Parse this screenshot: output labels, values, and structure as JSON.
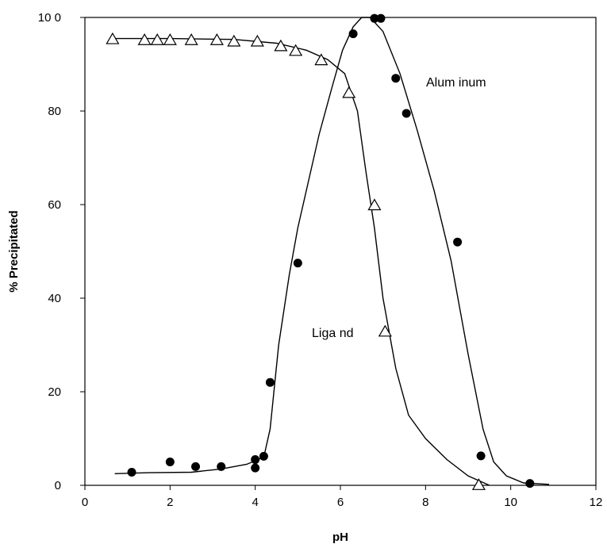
{
  "chart_data": {
    "type": "scatter",
    "title": "",
    "xlabel": "pH",
    "ylabel": "% Precipitated",
    "xlim": [
      0,
      12
    ],
    "ylim": [
      0,
      100
    ],
    "x_ticks": [
      "0",
      "2",
      "4",
      "6",
      "8",
      "10",
      "12"
    ],
    "y_ticks": [
      "0",
      "20",
      "40",
      "60",
      "80",
      "10 0"
    ],
    "grid": false,
    "legend": "none",
    "annotations": [
      "Alum inum",
      "Liga nd"
    ],
    "series": [
      {
        "name": "Aluminum",
        "marker": "filled-circle",
        "points": [
          {
            "x": 1.1,
            "y": 2.8
          },
          {
            "x": 2.0,
            "y": 5.0
          },
          {
            "x": 2.6,
            "y": 4.0
          },
          {
            "x": 3.2,
            "y": 4.0
          },
          {
            "x": 4.0,
            "y": 5.5
          },
          {
            "x": 4.0,
            "y": 3.7
          },
          {
            "x": 4.2,
            "y": 6.2
          },
          {
            "x": 4.35,
            "y": 22.0
          },
          {
            "x": 5.0,
            "y": 47.5
          },
          {
            "x": 6.3,
            "y": 96.5
          },
          {
            "x": 6.8,
            "y": 99.8
          },
          {
            "x": 6.95,
            "y": 99.8
          },
          {
            "x": 7.3,
            "y": 87.0
          },
          {
            "x": 7.55,
            "y": 79.5
          },
          {
            "x": 8.75,
            "y": 52.0
          },
          {
            "x": 9.3,
            "y": 6.3
          },
          {
            "x": 10.45,
            "y": 0.4
          }
        ],
        "curve": [
          {
            "x": 0.7,
            "y": 2.5
          },
          {
            "x": 1.5,
            "y": 2.7
          },
          {
            "x": 2.5,
            "y": 2.8
          },
          {
            "x": 3.2,
            "y": 3.5
          },
          {
            "x": 3.8,
            "y": 4.5
          },
          {
            "x": 4.2,
            "y": 6.0
          },
          {
            "x": 4.35,
            "y": 12.0
          },
          {
            "x": 4.55,
            "y": 30.0
          },
          {
            "x": 4.8,
            "y": 45.0
          },
          {
            "x": 5.0,
            "y": 55.0
          },
          {
            "x": 5.5,
            "y": 75.0
          },
          {
            "x": 5.8,
            "y": 85.0
          },
          {
            "x": 6.05,
            "y": 93.0
          },
          {
            "x": 6.3,
            "y": 98.0
          },
          {
            "x": 6.5,
            "y": 100.0
          },
          {
            "x": 6.7,
            "y": 100.0
          },
          {
            "x": 7.0,
            "y": 97.0
          },
          {
            "x": 7.4,
            "y": 88.0
          },
          {
            "x": 7.8,
            "y": 76.0
          },
          {
            "x": 8.2,
            "y": 63.0
          },
          {
            "x": 8.6,
            "y": 48.0
          },
          {
            "x": 9.0,
            "y": 28.0
          },
          {
            "x": 9.35,
            "y": 12.0
          },
          {
            "x": 9.6,
            "y": 5.0
          },
          {
            "x": 9.9,
            "y": 2.0
          },
          {
            "x": 10.3,
            "y": 0.5
          },
          {
            "x": 10.9,
            "y": 0.2
          }
        ]
      },
      {
        "name": "Ligand",
        "marker": "open-triangle",
        "points": [
          {
            "x": 0.65,
            "y": 95.5
          },
          {
            "x": 1.4,
            "y": 95.3
          },
          {
            "x": 1.7,
            "y": 95.3
          },
          {
            "x": 2.0,
            "y": 95.3
          },
          {
            "x": 2.5,
            "y": 95.3
          },
          {
            "x": 3.1,
            "y": 95.3
          },
          {
            "x": 3.5,
            "y": 95.0
          },
          {
            "x": 4.05,
            "y": 95.0
          },
          {
            "x": 4.6,
            "y": 94.0
          },
          {
            "x": 4.95,
            "y": 93.0
          },
          {
            "x": 5.55,
            "y": 91.0
          },
          {
            "x": 6.2,
            "y": 84.0
          },
          {
            "x": 6.8,
            "y": 60.0
          },
          {
            "x": 7.05,
            "y": 33.0
          },
          {
            "x": 9.25,
            "y": 0.2
          }
        ],
        "curve": [
          {
            "x": 0.65,
            "y": 95.5
          },
          {
            "x": 2.0,
            "y": 95.5
          },
          {
            "x": 3.5,
            "y": 95.3
          },
          {
            "x": 4.5,
            "y": 94.5
          },
          {
            "x": 5.2,
            "y": 93.0
          },
          {
            "x": 5.7,
            "y": 91.0
          },
          {
            "x": 6.1,
            "y": 88.0
          },
          {
            "x": 6.4,
            "y": 80.0
          },
          {
            "x": 6.6,
            "y": 67.0
          },
          {
            "x": 6.8,
            "y": 55.0
          },
          {
            "x": 7.0,
            "y": 40.0
          },
          {
            "x": 7.3,
            "y": 25.0
          },
          {
            "x": 7.6,
            "y": 15.0
          },
          {
            "x": 8.0,
            "y": 10.0
          },
          {
            "x": 8.5,
            "y": 5.5
          },
          {
            "x": 9.0,
            "y": 2.0
          },
          {
            "x": 9.5,
            "y": 0.0
          }
        ]
      }
    ]
  }
}
